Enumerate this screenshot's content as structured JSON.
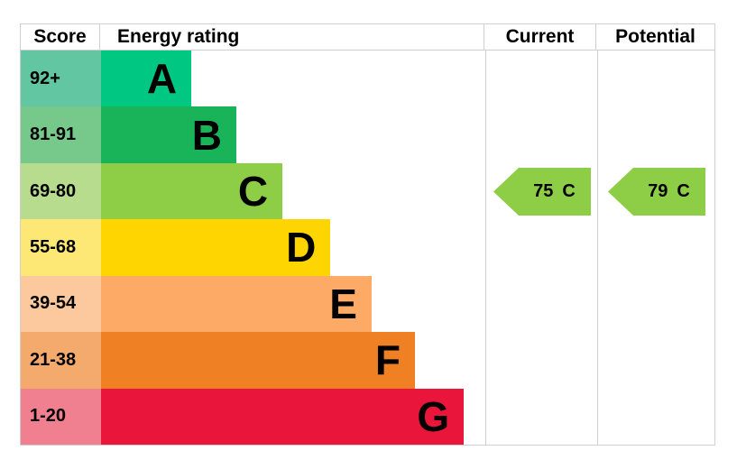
{
  "header": {
    "score": "Score",
    "energy_rating": "Energy rating",
    "current": "Current",
    "potential": "Potential"
  },
  "chart_data": {
    "type": "bar",
    "columns": [
      "Score",
      "Energy rating",
      "Current",
      "Potential"
    ],
    "bands": [
      {
        "letter": "A",
        "score_range": "92+",
        "color": "#00c781",
        "tint": "#62c6a2",
        "bar_width_pct": 23.5
      },
      {
        "letter": "B",
        "score_range": "81-91",
        "color": "#19b459",
        "tint": "#76c98b",
        "bar_width_pct": 35.2
      },
      {
        "letter": "C",
        "score_range": "69-80",
        "color": "#8dce46",
        "tint": "#b8dc8d",
        "bar_width_pct": 47.2
      },
      {
        "letter": "D",
        "score_range": "55-68",
        "color": "#ffd500",
        "tint": "#fde876",
        "bar_width_pct": 59.7
      },
      {
        "letter": "E",
        "score_range": "39-54",
        "color": "#fcaa65",
        "tint": "#fcc89d",
        "bar_width_pct": 70.4
      },
      {
        "letter": "F",
        "score_range": "21-38",
        "color": "#ef8023",
        "tint": "#f4aa6c",
        "bar_width_pct": 81.7
      },
      {
        "letter": "G",
        "score_range": "1-20",
        "color": "#e9153b",
        "tint": "#f0808f",
        "bar_width_pct": 94.4
      }
    ],
    "current": {
      "value": "75",
      "band": "C",
      "band_index": 2,
      "color": "#8dce46"
    },
    "potential": {
      "value": "79",
      "band": "C",
      "band_index": 2,
      "color": "#8dce46"
    },
    "layout": {
      "legend": "none",
      "grid": "none"
    }
  },
  "style": {
    "border_color": "#cfcfcf",
    "text_color": "#000000",
    "background": "#ffffff"
  }
}
